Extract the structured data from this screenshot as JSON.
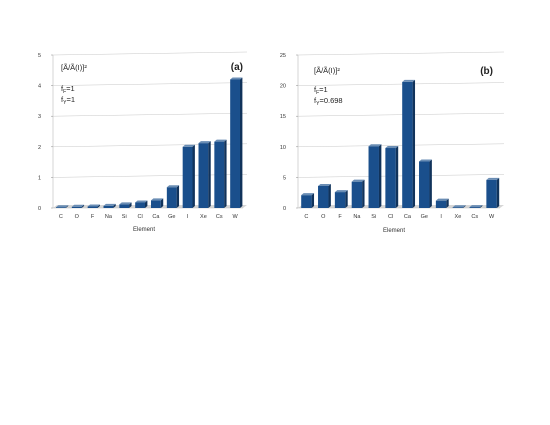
{
  "chart_data": [
    {
      "type": "bar",
      "panel_label": "(a)",
      "ylabel_text": "[Ã/Ã(I)]²",
      "annotations": [
        "f_F=1",
        "f_Y=1"
      ],
      "xlabel": "Element",
      "categories": [
        "C",
        "O",
        "F",
        "Na",
        "Si",
        "Cl",
        "Ca",
        "Ge",
        "I",
        "Xe",
        "Cs",
        "W"
      ],
      "values": [
        0.02,
        0.04,
        0.05,
        0.07,
        0.12,
        0.18,
        0.25,
        0.68,
        2.0,
        2.12,
        2.17,
        4.2
      ],
      "ylim": [
        0,
        5
      ],
      "yticks": [
        0,
        1,
        2,
        3,
        4,
        5
      ],
      "color": "#1a4f8c"
    },
    {
      "type": "bar",
      "panel_label": "(b)",
      "ylabel_text": "[Ã/Ã(I)]²",
      "annotations": [
        "f_F=1",
        "f_Y=0.698"
      ],
      "xlabel": "Element",
      "categories": [
        "C",
        "O",
        "F",
        "Na",
        "Si",
        "Cl",
        "Ca",
        "Ge",
        "I",
        "Xe",
        "Cs",
        "W"
      ],
      "values": [
        2.1,
        3.6,
        2.6,
        4.3,
        10.1,
        9.8,
        20.6,
        7.6,
        1.2,
        0.0,
        0.15,
        4.6
      ],
      "ylim": [
        0,
        25
      ],
      "yticks": [
        0,
        5,
        10,
        15,
        20,
        25
      ],
      "color": "#1a4f8c"
    }
  ]
}
